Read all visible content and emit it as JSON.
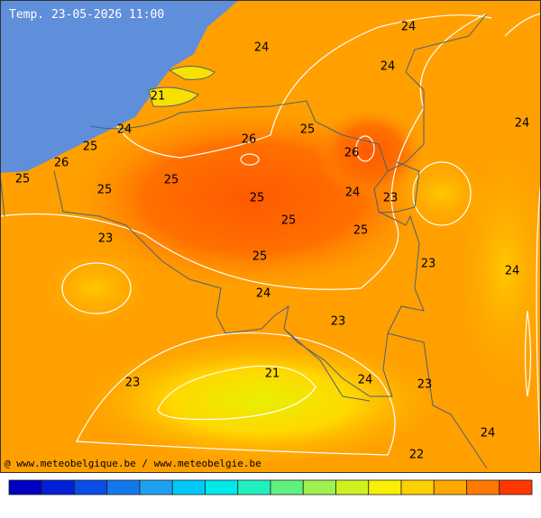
{
  "title": "Temp. 23-05-2026 11:00",
  "credit": "@ www.meteobelgique.be / www.meteobelgie.be",
  "labels": [
    24,
    24,
    24,
    21,
    24,
    25,
    26,
    25,
    26,
    25,
    26,
    24,
    25,
    25,
    25,
    24,
    23,
    25,
    25,
    23,
    23,
    25,
    24,
    24,
    23,
    21,
    23,
    24,
    23,
    24,
    22
  ],
  "colorbar": [
    "#0000c0",
    "#0020d8",
    "#0a4ce8",
    "#1478ec",
    "#1ea0f0",
    "#00c8f8",
    "#00e8e8",
    "#20f0c0",
    "#60f080",
    "#a0f050",
    "#d0f020",
    "#f8f000",
    "#ffd000",
    "#ffa800",
    "#ff7800",
    "#ff3800"
  ]
}
